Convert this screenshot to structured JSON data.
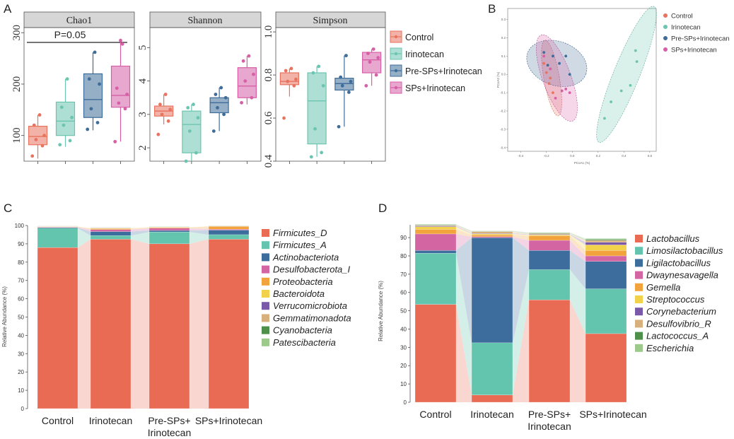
{
  "figure": {
    "panel_labels": [
      "A",
      "B",
      "C",
      "D"
    ]
  },
  "groups": [
    "Control",
    "Irinotecan",
    "Pre-SPs+Irinotecan",
    "SPs+Irinotecan"
  ],
  "colors": {
    "Control": "#e8735f",
    "Irinotecan": "#6cc5b0",
    "Pre-SPs+Irinotecan": "#3f6d99",
    "SPs+Irinotecan": "#d65fa6"
  },
  "chart_data": [
    {
      "id": "A-chao1",
      "type": "box",
      "title": "Chao1",
      "annotation": "P=0.05",
      "ylim": [
        50,
        310
      ],
      "yticks": [
        "100",
        "200",
        "300"
      ],
      "ytick_values": [
        100,
        200,
        300
      ],
      "boxes": [
        {
          "group": "Control",
          "q1": 82,
          "median": 98,
          "q3": 118,
          "whisker_low": 55,
          "whisker_high": 140,
          "points": [
            60,
            80,
            92,
            100,
            120,
            140
          ]
        },
        {
          "group": "Irinotecan",
          "q1": 100,
          "median": 128,
          "q3": 165,
          "whisker_low": 78,
          "whisker_high": 210,
          "points": [
            82,
            90,
            120,
            135,
            155,
            210
          ]
        },
        {
          "group": "Pre-SPs+Irinotecan",
          "q1": 135,
          "median": 170,
          "q3": 220,
          "whisker_low": 110,
          "whisker_high": 262,
          "points": [
            112,
            125,
            152,
            200,
            210,
            262
          ]
        },
        {
          "group": "SPs+Irinotecan",
          "q1": 155,
          "median": 178,
          "q3": 235,
          "whisker_low": 88,
          "whisker_high": 285,
          "points": [
            88,
            152,
            163,
            180,
            192,
            278,
            285
          ]
        }
      ]
    },
    {
      "id": "A-shannon",
      "type": "box",
      "title": "Shannon",
      "ylim": [
        1.6,
        5.6
      ],
      "yticks": [
        "2",
        "3",
        "4",
        "5"
      ],
      "ytick_values": [
        2,
        3,
        4,
        5
      ],
      "boxes": [
        {
          "group": "Control",
          "q1": 2.95,
          "median": 3.1,
          "q3": 3.25,
          "whisker_low": 2.7,
          "whisker_high": 3.6,
          "points": [
            2.4,
            2.8,
            3.0,
            3.15,
            3.3,
            3.6
          ]
        },
        {
          "group": "Irinotecan",
          "q1": 1.85,
          "median": 2.7,
          "q3": 3.1,
          "whisker_low": 1.6,
          "whisker_high": 3.3,
          "points": [
            1.6,
            1.85,
            2.5,
            2.9,
            3.2,
            3.3
          ]
        },
        {
          "group": "Pre-SPs+Irinotecan",
          "q1": 3.05,
          "median": 3.35,
          "q3": 3.5,
          "whisker_low": 2.5,
          "whisker_high": 3.8,
          "points": [
            2.5,
            3.0,
            3.2,
            3.5,
            3.6,
            3.8
          ]
        },
        {
          "group": "SPs+Irinotecan",
          "q1": 3.5,
          "median": 3.85,
          "q3": 4.4,
          "whisker_low": 3.3,
          "whisker_high": 4.75,
          "points": [
            3.35,
            3.5,
            4.0,
            4.2,
            4.6,
            4.75
          ]
        }
      ]
    },
    {
      "id": "A-simpson",
      "type": "box",
      "title": "Simpson",
      "ylim": [
        0.4,
        1.02
      ],
      "yticks": [
        "0.4",
        "0.6",
        "0.8",
        "1.0"
      ],
      "ytick_values": [
        0.4,
        0.6,
        0.8,
        1.0
      ],
      "boxes": [
        {
          "group": "Control",
          "q1": 0.755,
          "median": 0.77,
          "q3": 0.81,
          "whisker_low": 0.7,
          "whisker_high": 0.83,
          "points": [
            0.6,
            0.75,
            0.77,
            0.78,
            0.82,
            0.83
          ]
        },
        {
          "group": "Irinotecan",
          "q1": 0.48,
          "median": 0.68,
          "q3": 0.81,
          "whisker_low": 0.42,
          "whisker_high": 0.84,
          "points": [
            0.42,
            0.44,
            0.55,
            0.75,
            0.81,
            0.84
          ]
        },
        {
          "group": "Pre-SPs+Irinotecan",
          "q1": 0.73,
          "median": 0.76,
          "q3": 0.785,
          "whisker_low": 0.56,
          "whisker_high": 0.89,
          "points": [
            0.56,
            0.72,
            0.75,
            0.77,
            0.79,
            0.89
          ]
        },
        {
          "group": "SPs+Irinotecan",
          "q1": 0.81,
          "median": 0.87,
          "q3": 0.905,
          "whisker_low": 0.75,
          "whisker_high": 0.92,
          "points": [
            0.75,
            0.8,
            0.86,
            0.88,
            0.9,
            0.92
          ]
        }
      ]
    },
    {
      "id": "B-pcoa",
      "type": "scatter",
      "xlabel": "PCoA1 (%)",
      "ylabel": "PCoA2 (%)",
      "xlim": [
        -0.5,
        0.65
      ],
      "ylim": [
        -0.42,
        0.36
      ],
      "xticks": [
        "-0.4",
        "-0.2",
        "0.0",
        "0.2",
        "0.4",
        "0.6"
      ],
      "xtick_values": [
        -0.4,
        -0.2,
        0.0,
        0.2,
        0.4,
        0.6
      ],
      "yticks": [
        "0.3",
        "0.2",
        "0.1",
        "0.0",
        "-0.1",
        "-0.2",
        "-0.3",
        "-0.4"
      ],
      "ytick_values": [
        0.3,
        0.2,
        0.1,
        0.0,
        -0.1,
        -0.2,
        -0.3,
        -0.4
      ],
      "legend": [
        "Control",
        "Irinotecan",
        "Pre-SPs+Irinotecan",
        "SPs+Irinotecan"
      ],
      "series": [
        {
          "name": "Control",
          "points": [
            [
              -0.22,
              0.06
            ],
            [
              -0.2,
              0.01
            ],
            [
              -0.17,
              -0.02
            ],
            [
              -0.18,
              -0.05
            ],
            [
              -0.15,
              -0.1
            ],
            [
              -0.22,
              0.12
            ]
          ],
          "ellipse": {
            "cx": -0.16,
            "cy": -0.02,
            "rx": 0.06,
            "ry": 0.21,
            "angle": -10
          }
        },
        {
          "name": "Irinotecan",
          "points": [
            [
              0.49,
              0.13
            ],
            [
              0.5,
              0.07
            ],
            [
              0.45,
              -0.06
            ],
            [
              0.38,
              -0.09
            ],
            [
              0.3,
              -0.15
            ],
            [
              0.25,
              -0.24
            ]
          ],
          "ellipse": {
            "cx": 0.42,
            "cy": 0.0,
            "rx": 0.1,
            "ry": 0.4,
            "angle": 22
          }
        },
        {
          "name": "Pre-SPs+Irinotecan",
          "points": [
            [
              -0.22,
              0.12
            ],
            [
              -0.15,
              0.1
            ],
            [
              -0.05,
              0.1
            ],
            [
              -0.1,
              0.06
            ],
            [
              -0.02,
              0.0
            ],
            [
              -0.19,
              0.05
            ]
          ],
          "ellipse": {
            "cx": -0.12,
            "cy": 0.06,
            "rx": 0.24,
            "ry": 0.12,
            "angle": 20
          }
        },
        {
          "name": "SPs+Irinotecan",
          "points": [
            [
              -0.22,
              0.1
            ],
            [
              -0.17,
              0.03
            ],
            [
              -0.08,
              -0.09
            ],
            [
              -0.05,
              -0.08
            ],
            [
              -0.02,
              -0.1
            ],
            [
              -0.13,
              -0.13
            ]
          ],
          "ellipse": {
            "cx": -0.12,
            "cy": -0.02,
            "rx": 0.11,
            "ry": 0.25,
            "angle": -20
          }
        }
      ]
    },
    {
      "id": "C-phylum",
      "type": "bar",
      "stacked": true,
      "ylabel": "Relative Abundance (%)",
      "ylim": [
        0,
        100
      ],
      "yticks": [
        "0",
        "10",
        "20",
        "30",
        "40",
        "50",
        "60",
        "70",
        "80",
        "90",
        "100"
      ],
      "ytick_values": [
        0,
        10,
        20,
        30,
        40,
        50,
        60,
        70,
        80,
        90,
        100
      ],
      "categories": [
        "Control",
        "Irinotecan",
        "Pre-SPs+\nIrinotecan",
        "SPs+Irinotecan"
      ],
      "category_lines": [
        [
          "Control"
        ],
        [
          "Irinotecan"
        ],
        [
          "Pre-SPs+",
          "Irinotecan"
        ],
        [
          "SPs+Irinotecan"
        ]
      ],
      "series": [
        {
          "name": "Firmicutes_D",
          "color": "#e96b53",
          "values": [
            88,
            92.5,
            90,
            92.5
          ]
        },
        {
          "name": "Firmicutes_A",
          "color": "#63c5ae",
          "values": [
            10.5,
            2,
            6.5,
            2.5
          ]
        },
        {
          "name": "Actinobacteriota",
          "color": "#3d6d9c",
          "values": [
            0.4,
            2.2,
            0.8,
            2.5
          ]
        },
        {
          "name": "Desulfobacterota_I",
          "color": "#d365a3",
          "values": [
            0.2,
            1.1,
            1.2,
            0.5
          ]
        },
        {
          "name": "Proteobacteria",
          "color": "#f2a33c",
          "values": [
            0.2,
            0.6,
            0.4,
            1.5
          ]
        },
        {
          "name": "Bacteroidota",
          "color": "#f2d24a",
          "values": [
            0.1,
            0.2,
            0.2,
            0.1
          ]
        },
        {
          "name": "Verrucomicrobiota",
          "color": "#7a5aa8",
          "values": [
            0.1,
            0.1,
            0.1,
            0.1
          ]
        },
        {
          "name": "Gemmatimonadota",
          "color": "#d8b07e",
          "values": [
            0.1,
            0.1,
            0.1,
            0.1
          ]
        },
        {
          "name": "Cyanobacteria",
          "color": "#4f8f4c",
          "values": [
            0.1,
            0.1,
            0.1,
            0.1
          ]
        },
        {
          "name": "Patescibacteria",
          "color": "#9ec98c",
          "values": [
            0.1,
            0.1,
            0.1,
            0.1
          ]
        }
      ]
    },
    {
      "id": "D-genus",
      "type": "bar",
      "stacked": true,
      "ylabel": "Relative Abundance (%)",
      "ylim": [
        0,
        97
      ],
      "yticks": [
        "0",
        "10",
        "20",
        "30",
        "40",
        "50",
        "60",
        "70",
        "80",
        "90"
      ],
      "ytick_values": [
        0,
        10,
        20,
        30,
        40,
        50,
        60,
        70,
        80,
        90
      ],
      "categories": [
        "Control",
        "Irinotecan",
        "Pre-SPs+\nIrinotecan",
        "SPs+Irinotecan"
      ],
      "category_lines": [
        [
          "Control"
        ],
        [
          "Irinotecan"
        ],
        [
          "Pre-SPs+",
          "Irinotecan"
        ],
        [
          "SPs+Irinotecan"
        ]
      ],
      "series": [
        {
          "name": "Lactobacillus",
          "color": "#e96b53",
          "values": [
            53.5,
            4,
            56,
            37.5
          ]
        },
        {
          "name": "Limosilactobacillus",
          "color": "#63c5ae",
          "values": [
            28,
            28.5,
            16.5,
            24.5
          ]
        },
        {
          "name": "Ligilactobacillus",
          "color": "#3d6d9c",
          "values": [
            1.5,
            57.5,
            10.5,
            15
          ]
        },
        {
          "name": "Dwaynesavagella",
          "color": "#d365a3",
          "values": [
            9,
            0.5,
            5.5,
            3
          ]
        },
        {
          "name": "Gemella",
          "color": "#f2a33c",
          "values": [
            2.5,
            1,
            2.5,
            3
          ]
        },
        {
          "name": "Streptococcus",
          "color": "#f2d24a",
          "values": [
            1.5,
            0.5,
            0.5,
            3
          ]
        },
        {
          "name": "Corynebacterium",
          "color": "#7a5aa8",
          "values": [
            0.4,
            0.3,
            0.3,
            1.5
          ]
        },
        {
          "name": "Desulfovibrio_R",
          "color": "#d8b07e",
          "values": [
            0.3,
            1,
            0.4,
            1
          ]
        },
        {
          "name": "Lactococcus_A",
          "color": "#4f8f4c",
          "values": [
            0.3,
            0.2,
            0.3,
            0.5
          ]
        },
        {
          "name": "Escherichia",
          "color": "#9ec98c",
          "values": [
            0.3,
            0.2,
            0.3,
            0.5
          ]
        }
      ]
    }
  ]
}
